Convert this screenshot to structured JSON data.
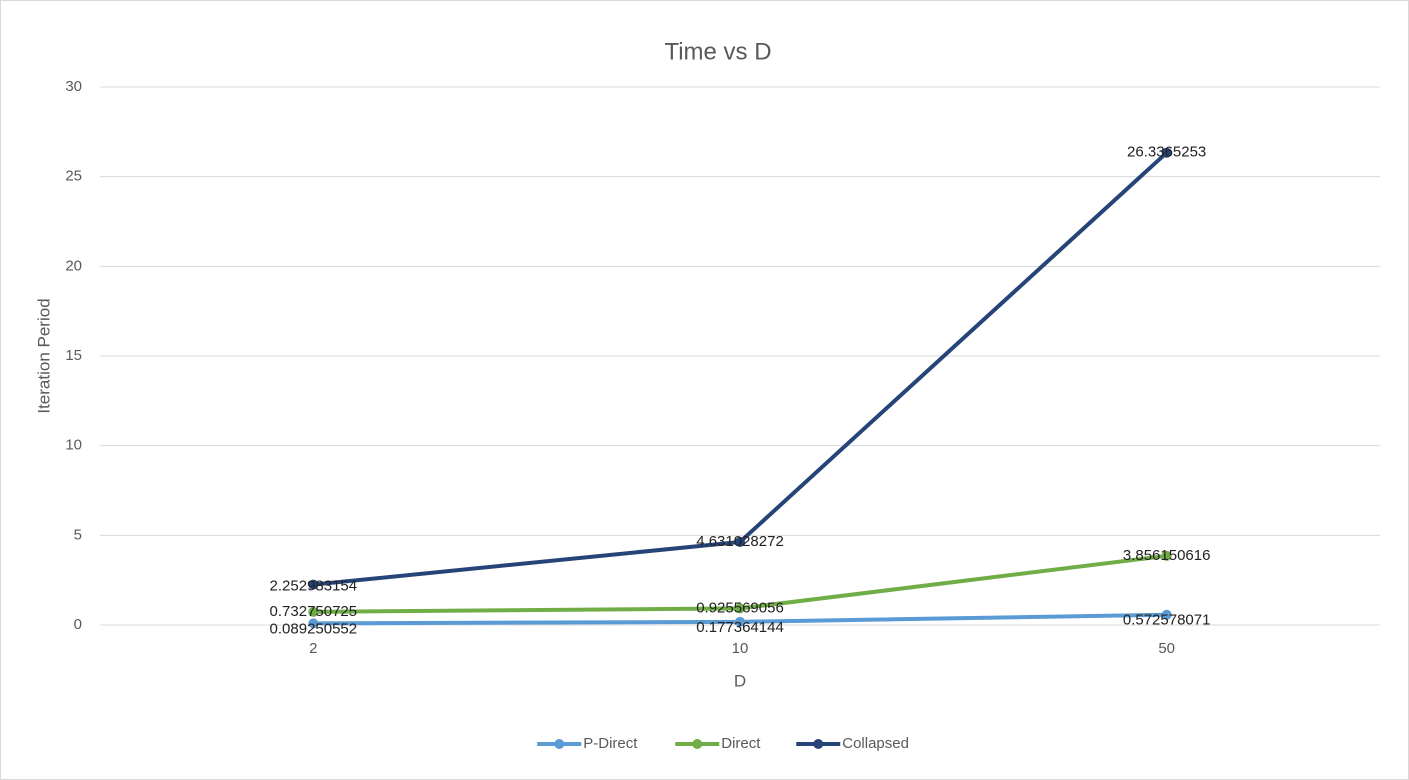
{
  "chart_data": {
    "type": "line",
    "title": "Time vs D",
    "x_label": "D",
    "y_label": "Iteration Period",
    "categories": [
      "2",
      "10",
      "50"
    ],
    "series": [
      {
        "name": "P-Direct",
        "color": "#5b9bd5",
        "values": [
          0.089250552,
          0.177364144,
          0.572578071
        ]
      },
      {
        "name": "Direct",
        "color": "#70ad47",
        "values": [
          0.732750725,
          0.925569056,
          3.856150616
        ]
      },
      {
        "name": "Collapsed",
        "color": "#264478",
        "values": [
          2.252983154,
          4.631028272,
          26.3365253
        ]
      }
    ],
    "ylim": [
      0,
      30
    ],
    "yticks": [
      0,
      5,
      10,
      15,
      20,
      25,
      30
    ],
    "grid": true,
    "legend": "bottom"
  }
}
